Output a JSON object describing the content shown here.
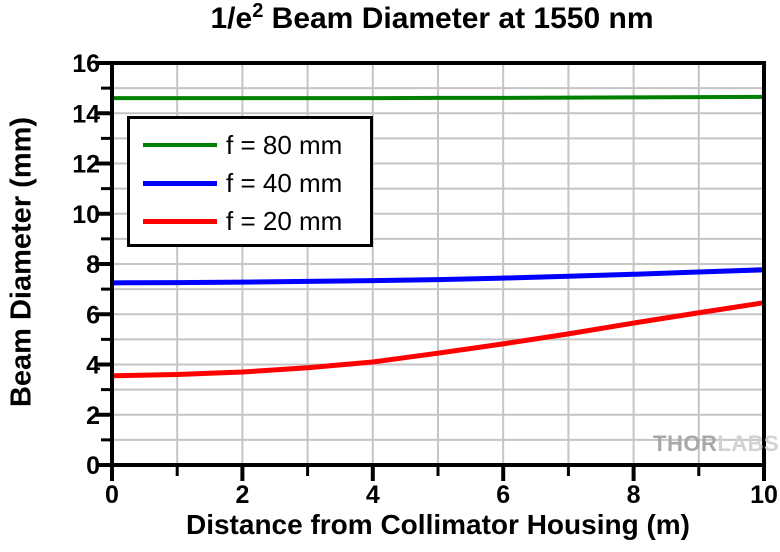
{
  "title": {
    "prefix": "1/e",
    "sup": "2",
    "rest": " Beam Diameter at 1550 nm"
  },
  "axes": {
    "x_label": "Distance from Collimator Housing (m)",
    "y_label": "Beam Diameter (mm)"
  },
  "watermark": {
    "part1": "THOR",
    "part2": "LABS"
  },
  "chart_data": {
    "type": "line",
    "title": "1/e2 Beam Diameter at 1550 nm",
    "xlabel": "Distance from Collimator Housing (m)",
    "ylabel": "Beam Diameter (mm)",
    "xlim": [
      0,
      10
    ],
    "ylim": [
      0,
      16
    ],
    "x_major_ticks": [
      0,
      2,
      4,
      6,
      8,
      10
    ],
    "y_major_ticks": [
      0,
      2,
      4,
      6,
      8,
      10,
      12,
      14,
      16
    ],
    "minor_tick_step": 1,
    "grid": true,
    "grid_step": 1,
    "grid_color": "#c5c5c5",
    "legend_position": "upper-left",
    "x": [
      0,
      1,
      2,
      3,
      4,
      5,
      6,
      7,
      8,
      9,
      10
    ],
    "series": [
      {
        "name": "f = 80 mm",
        "color": "#008000",
        "line_width": 4,
        "values": [
          14.6,
          14.6,
          14.6,
          14.6,
          14.6,
          14.61,
          14.61,
          14.62,
          14.63,
          14.64,
          14.65
        ]
      },
      {
        "name": "f = 40 mm",
        "color": "#0000ff",
        "line_width": 5,
        "values": [
          7.25,
          7.26,
          7.28,
          7.31,
          7.34,
          7.38,
          7.44,
          7.51,
          7.59,
          7.68,
          7.77
        ]
      },
      {
        "name": "f = 20 mm",
        "color": "#ff0000",
        "line_width": 5,
        "values": [
          3.55,
          3.6,
          3.7,
          3.87,
          4.1,
          4.45,
          4.82,
          5.22,
          5.65,
          6.06,
          6.46
        ]
      }
    ]
  }
}
